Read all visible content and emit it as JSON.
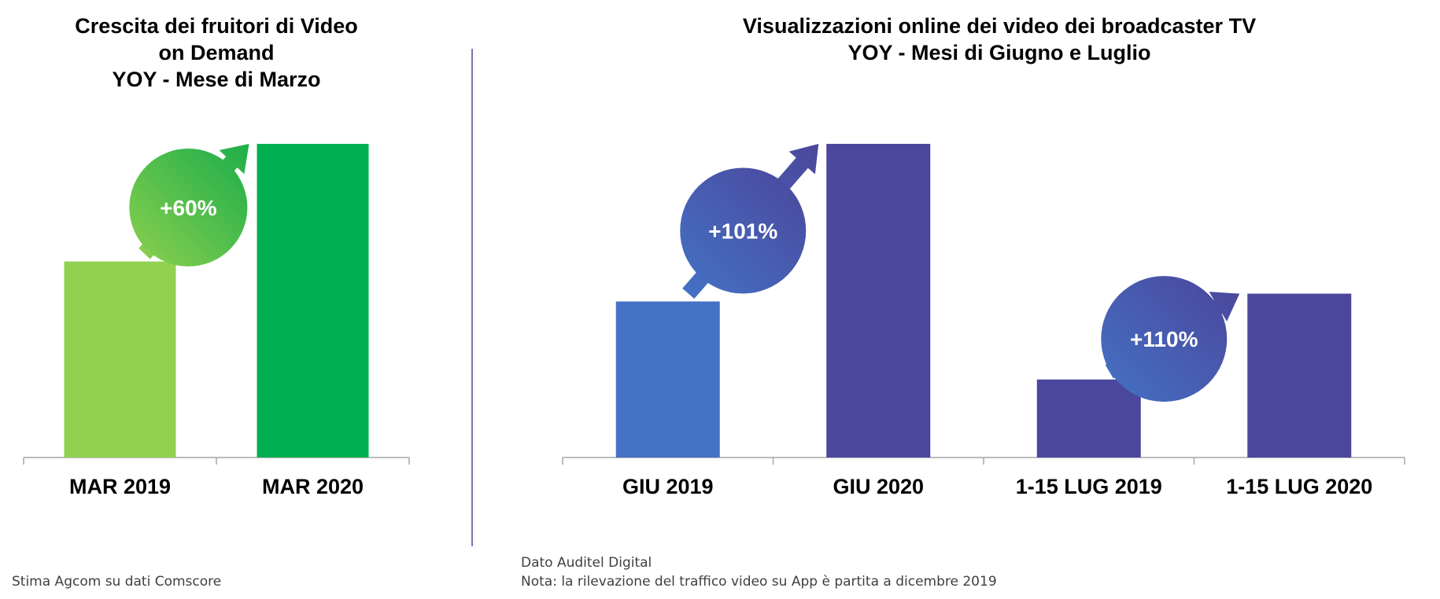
{
  "charts": [
    {
      "title_lines": [
        "Crescita dei fruitori di Video",
        "on Demand",
        "YOY - Mese di Marzo"
      ],
      "source": "Stima Agcom su dati Comscore"
    },
    {
      "title_lines": [
        "Visualizzazioni online dei video dei broadcaster TV",
        "YOY - Mesi di Giugno e Luglio"
      ],
      "source_lines": [
        "Dato Auditel Digital",
        "Nota: la rilevazione del traffico video su App è partita a dicembre 2019"
      ]
    }
  ],
  "chart_data": [
    {
      "type": "bar",
      "title": "Crescita dei fruitori di Video on Demand YOY - Mese di Marzo",
      "categories": [
        "MAR 2019",
        "MAR 2020"
      ],
      "values": [
        100,
        160
      ],
      "bar_colors": [
        "#92D050",
        "#00B050"
      ],
      "ylim": [
        0,
        160
      ],
      "grid": false,
      "legend": "none",
      "annotations": [
        {
          "text": "+60%",
          "from": "MAR 2019",
          "to": "MAR 2020",
          "color": "#4CBF4A"
        }
      ]
    },
    {
      "type": "bar",
      "title": "Visualizzazioni online dei video dei broadcaster TV YOY - Mesi di Giugno e Luglio",
      "categories": [
        "GIU 2019",
        "GIU 2020",
        "1-15 LUG 2019",
        "1-15 LUG 2020"
      ],
      "values": [
        100,
        201,
        50,
        105
      ],
      "bar_colors": [
        "#4472C4",
        "#4B479C",
        "#4B479C",
        "#4B479C"
      ],
      "ylim": [
        0,
        201
      ],
      "grid": false,
      "legend": "none",
      "annotations": [
        {
          "text": "+101%",
          "from": "GIU 2019",
          "to": "GIU 2020",
          "color": "#4059B0"
        },
        {
          "text": "+110%",
          "from": "1-15 LUG 2019",
          "to": "1-15 LUG 2020",
          "color": "#4059B0"
        }
      ]
    }
  ]
}
